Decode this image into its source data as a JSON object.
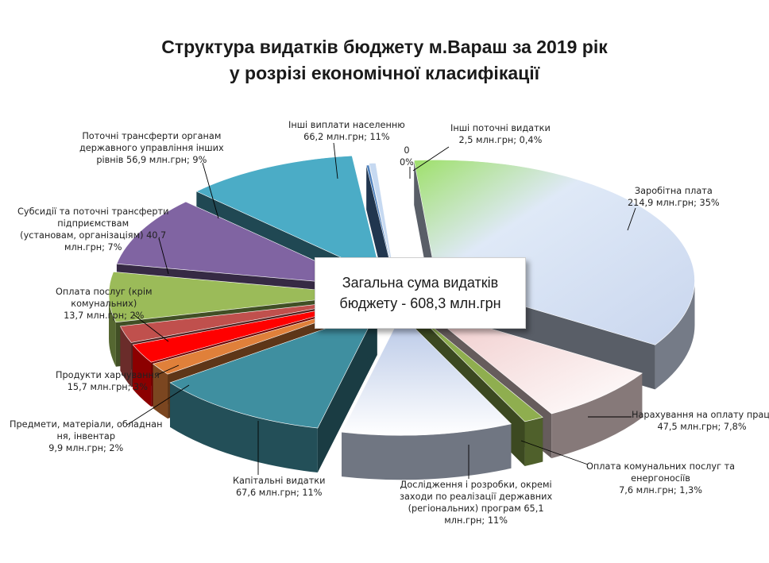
{
  "chart_data": {
    "type": "pie",
    "title": "Структура видатків бюджету м.Вараш за 2019 рік",
    "subtitle": "у розрізі економічної класифікації",
    "center_note": {
      "line1": "Загальна сума видатків",
      "line2": "бюджету - 608,3 млн.грн"
    },
    "slices": [
      {
        "id": "zarobitna",
        "value": 214.9,
        "percent": 35,
        "color": "#d5e0f5",
        "color_edge": "#9ad46e",
        "lines": [
          "Заробітна плата",
          "214,9 млн.грн; 35%"
        ]
      },
      {
        "id": "narakhuvannia",
        "value": 47.5,
        "percent": 7.8,
        "color": "#f3dcdc",
        "lines": [
          "Нарахування на оплату праці",
          "47,5 млн.грн; 7,8%"
        ]
      },
      {
        "id": "komunalni",
        "value": 7.6,
        "percent": 1.3,
        "color": "#8fae4f",
        "lines": [
          "Оплата комунальних послуг та",
          "енергоносіїв",
          "7,6 млн.грн; 1,3%"
        ]
      },
      {
        "id": "doslidzhennia",
        "value": 65.1,
        "percent": 11,
        "color": "#ccd6ec",
        "lines": [
          "Дослідження і розробки, окремі",
          "заходи по реалізації державних",
          "(регіональних) програм  65,1",
          "млн.грн; 11%"
        ]
      },
      {
        "id": "kapitalni",
        "value": 67.6,
        "percent": 11,
        "color": "#3f8fa0",
        "lines": [
          "Капітальні видатки",
          "67,6 млн.грн; 11%"
        ]
      },
      {
        "id": "predmety",
        "value": 9.9,
        "percent": 2,
        "color": "#e0803a",
        "lines": [
          "Предмети, матеріали, обладнан",
          "ня, інвентар",
          "9,9 млн.грн; 2%"
        ]
      },
      {
        "id": "produkty",
        "value": 15.7,
        "percent": 3,
        "color": "#ff0000",
        "lines": [
          "Продукти харчування",
          "15,7 млн.грн; 3%"
        ]
      },
      {
        "id": "posluhy",
        "value": 13.7,
        "percent": 2,
        "color": "#c0504d",
        "lines": [
          "Оплата послуг (крім",
          "комунальних)",
          "13,7 млн.грн; 2%"
        ]
      },
      {
        "id": "subsydii",
        "value": 40.7,
        "percent": 7,
        "color": "#9bbb59",
        "lines": [
          "Субсидії та поточні трансферти",
          "підприємствам",
          "(установам, організаціям) 40,7",
          "млн.грн; 7%"
        ]
      },
      {
        "id": "transferty",
        "value": 56.9,
        "percent": 9,
        "color": "#8064a2",
        "lines": [
          "Поточні трансферти органам",
          "державного управління інших",
          "рівнів  56,9 млн.грн; 9%"
        ]
      },
      {
        "id": "inshi_vyplaty",
        "value": 66.2,
        "percent": 11,
        "color": "#4bacc6",
        "lines": [
          "Інші виплати населенню",
          "66,2 млн.грн; 11%"
        ]
      },
      {
        "id": "nul",
        "value": 0,
        "percent": 0,
        "color": "#4f81bd",
        "lines": [
          "0",
          "0%"
        ]
      },
      {
        "id": "inshi_potochni",
        "value": 2.5,
        "percent": 0.4,
        "color": "#c6d9f1",
        "lines": [
          "Інші поточні видатки",
          "2,5 млн.грн; 0,4%"
        ]
      }
    ]
  }
}
